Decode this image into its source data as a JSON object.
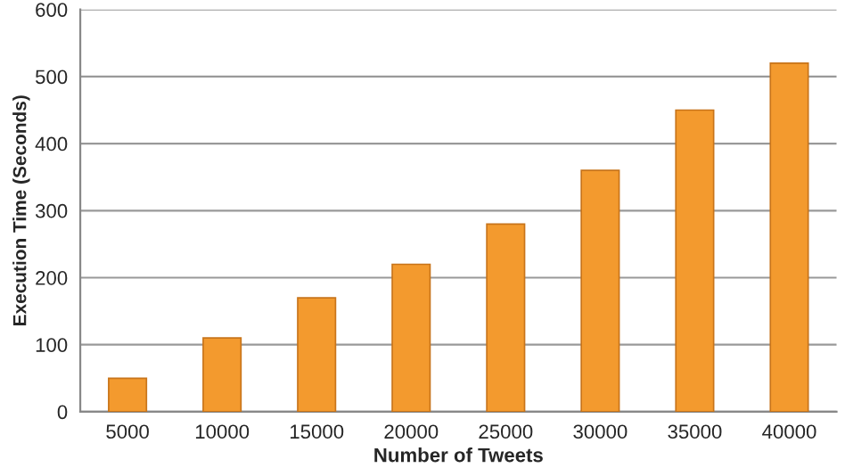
{
  "chart_data": {
    "type": "bar",
    "xlabel": "Number of Tweets",
    "ylabel": "Execution Time (Seconds)",
    "categories": [
      "5000",
      "10000",
      "15000",
      "20000",
      "25000",
      "30000",
      "35000",
      "40000"
    ],
    "values": [
      50,
      110,
      170,
      220,
      280,
      360,
      450,
      520
    ],
    "color": "#f39a2e",
    "ylim": [
      0,
      600
    ],
    "yticks": [
      0,
      100,
      200,
      300,
      400,
      500,
      600
    ],
    "grid": "y"
  }
}
